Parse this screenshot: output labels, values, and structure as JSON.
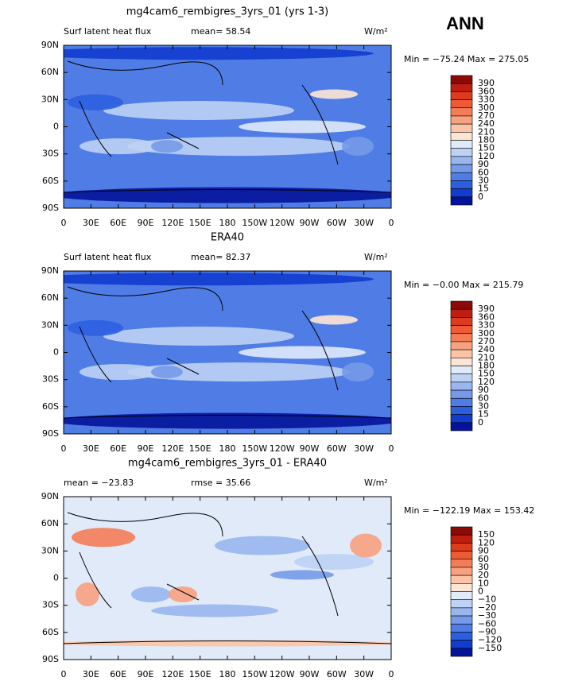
{
  "season": "ANN",
  "lat_labels": [
    "90N",
    "60N",
    "30N",
    "0",
    "30S",
    "60S",
    "90S"
  ],
  "lon_labels": [
    "0",
    "30E",
    "60E",
    "90E",
    "120E",
    "150E",
    "180",
    "150W",
    "120W",
    "90W",
    "60W",
    "30W",
    "0"
  ],
  "panels": [
    {
      "title": "mg4cam6_rembigres_3yrs_01 (yrs 1-3)",
      "left": "Surf latent heat flux",
      "center": "mean=  58.54",
      "units": "W/m²",
      "stats": "Min = −75.24 Max = 275.05",
      "kind": "field",
      "levels": [
        "390",
        "360",
        "330",
        "300",
        "270",
        "240",
        "210",
        "180",
        "150",
        "120",
        "90",
        "60",
        "30",
        "15",
        "0"
      ]
    },
    {
      "title": "ERA40",
      "left": "Surf latent heat flux",
      "center": "mean=  82.37",
      "units": "W/m²",
      "stats": "Min =  −0.00 Max = 215.79",
      "kind": "field",
      "levels": [
        "390",
        "360",
        "330",
        "300",
        "270",
        "240",
        "210",
        "180",
        "150",
        "120",
        "90",
        "60",
        "30",
        "15",
        "0"
      ]
    },
    {
      "title": "mg4cam6_rembigres_3yrs_01 - ERA40",
      "left": "mean = −23.83",
      "center": "rmse =  35.66",
      "units": "W/m²",
      "stats": "Min = −122.19 Max = 153.42",
      "kind": "diff",
      "levels": [
        "150",
        "120",
        "90",
        "60",
        "30",
        "20",
        "10",
        "0",
        "−10",
        "−20",
        "−30",
        "−60",
        "−90",
        "−120",
        "−150"
      ]
    }
  ],
  "colors": [
    "#8c0a06",
    "#bf1d0e",
    "#de3a1c",
    "#ee5a33",
    "#f47d58",
    "#f8a17f",
    "#fbc4a6",
    "#fde5d4",
    "#e0eaf9",
    "#bdd2f4",
    "#99b6ee",
    "#759ae9",
    "#507de5",
    "#2c5fe0",
    "#113cce",
    "#03149a"
  ]
}
